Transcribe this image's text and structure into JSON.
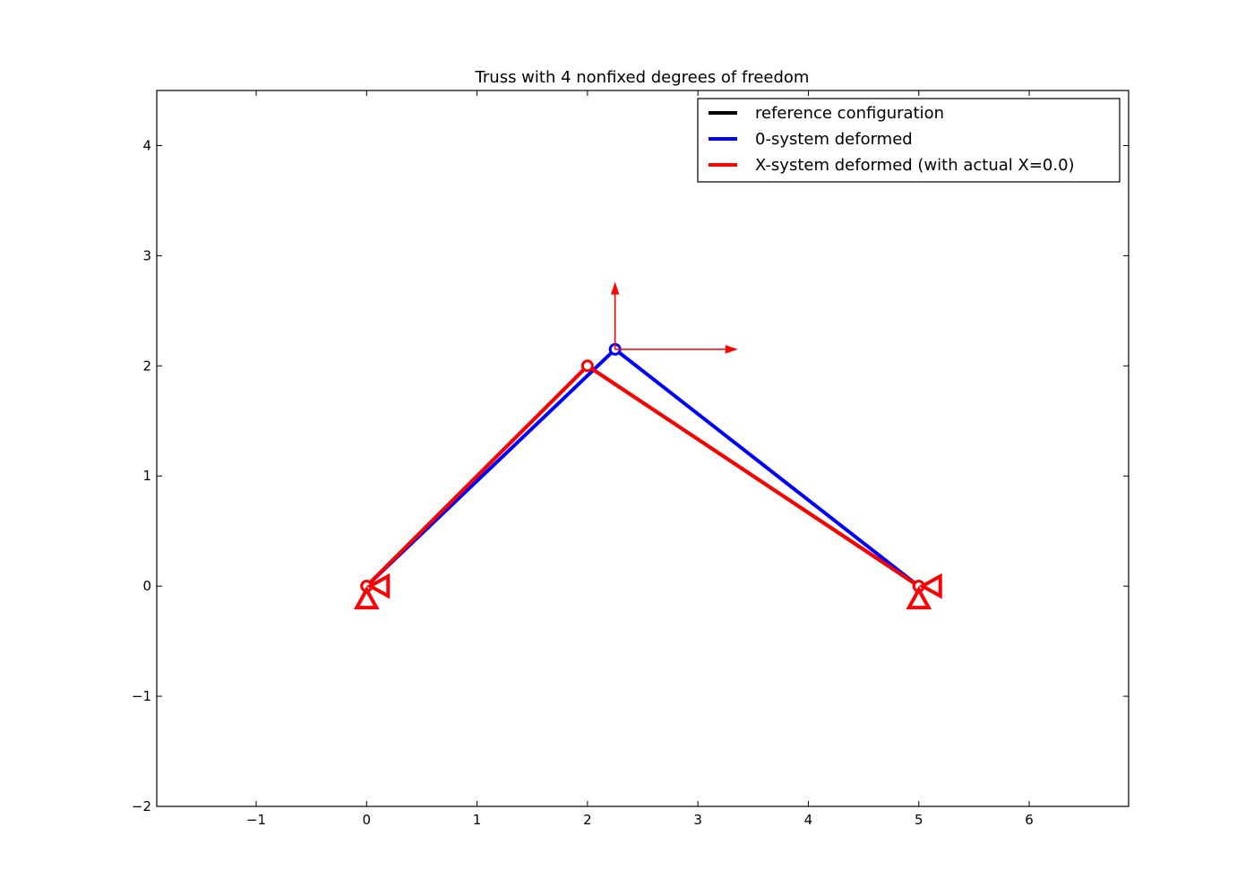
{
  "chart_data": {
    "type": "line",
    "title": "Truss with 4 nonfixed degrees of freedom",
    "xlabel": "",
    "ylabel": "",
    "xlim": [
      -1.9,
      6.9
    ],
    "ylim": [
      -2,
      4.5
    ],
    "xticks": [
      "−1",
      "0",
      "1",
      "2",
      "3",
      "4",
      "5",
      "6"
    ],
    "xtick_values": [
      -1,
      0,
      1,
      2,
      3,
      4,
      5,
      6
    ],
    "yticks": [
      "−2",
      "−1",
      "0",
      "1",
      "2",
      "3",
      "4"
    ],
    "ytick_values": [
      -2,
      -1,
      0,
      1,
      2,
      3,
      4
    ],
    "grid": false,
    "legend_position": "top-right",
    "series": [
      {
        "name": "reference configuration",
        "color": "#000000",
        "x": [
          0,
          2,
          5
        ],
        "y": [
          0,
          2,
          0
        ]
      },
      {
        "name": "0-system deformed",
        "color": "#0000ff",
        "x": [
          0,
          2.25,
          5
        ],
        "y": [
          0,
          2.15,
          0
        ]
      },
      {
        "name": "X-system deformed (with actual X=0.0)",
        "color": "#ff0000",
        "x": [
          0,
          2,
          5
        ],
        "y": [
          0,
          2,
          0
        ]
      }
    ],
    "supports": [
      {
        "x": 0,
        "y": 0
      },
      {
        "x": 5,
        "y": 0
      }
    ],
    "loads": [
      {
        "x": 2.25,
        "y": 2.15,
        "dx": 0,
        "dy": 0.6
      },
      {
        "x": 2.25,
        "y": 2.15,
        "dx": 1.1,
        "dy": 0
      }
    ],
    "load_color": "#ff0000"
  }
}
